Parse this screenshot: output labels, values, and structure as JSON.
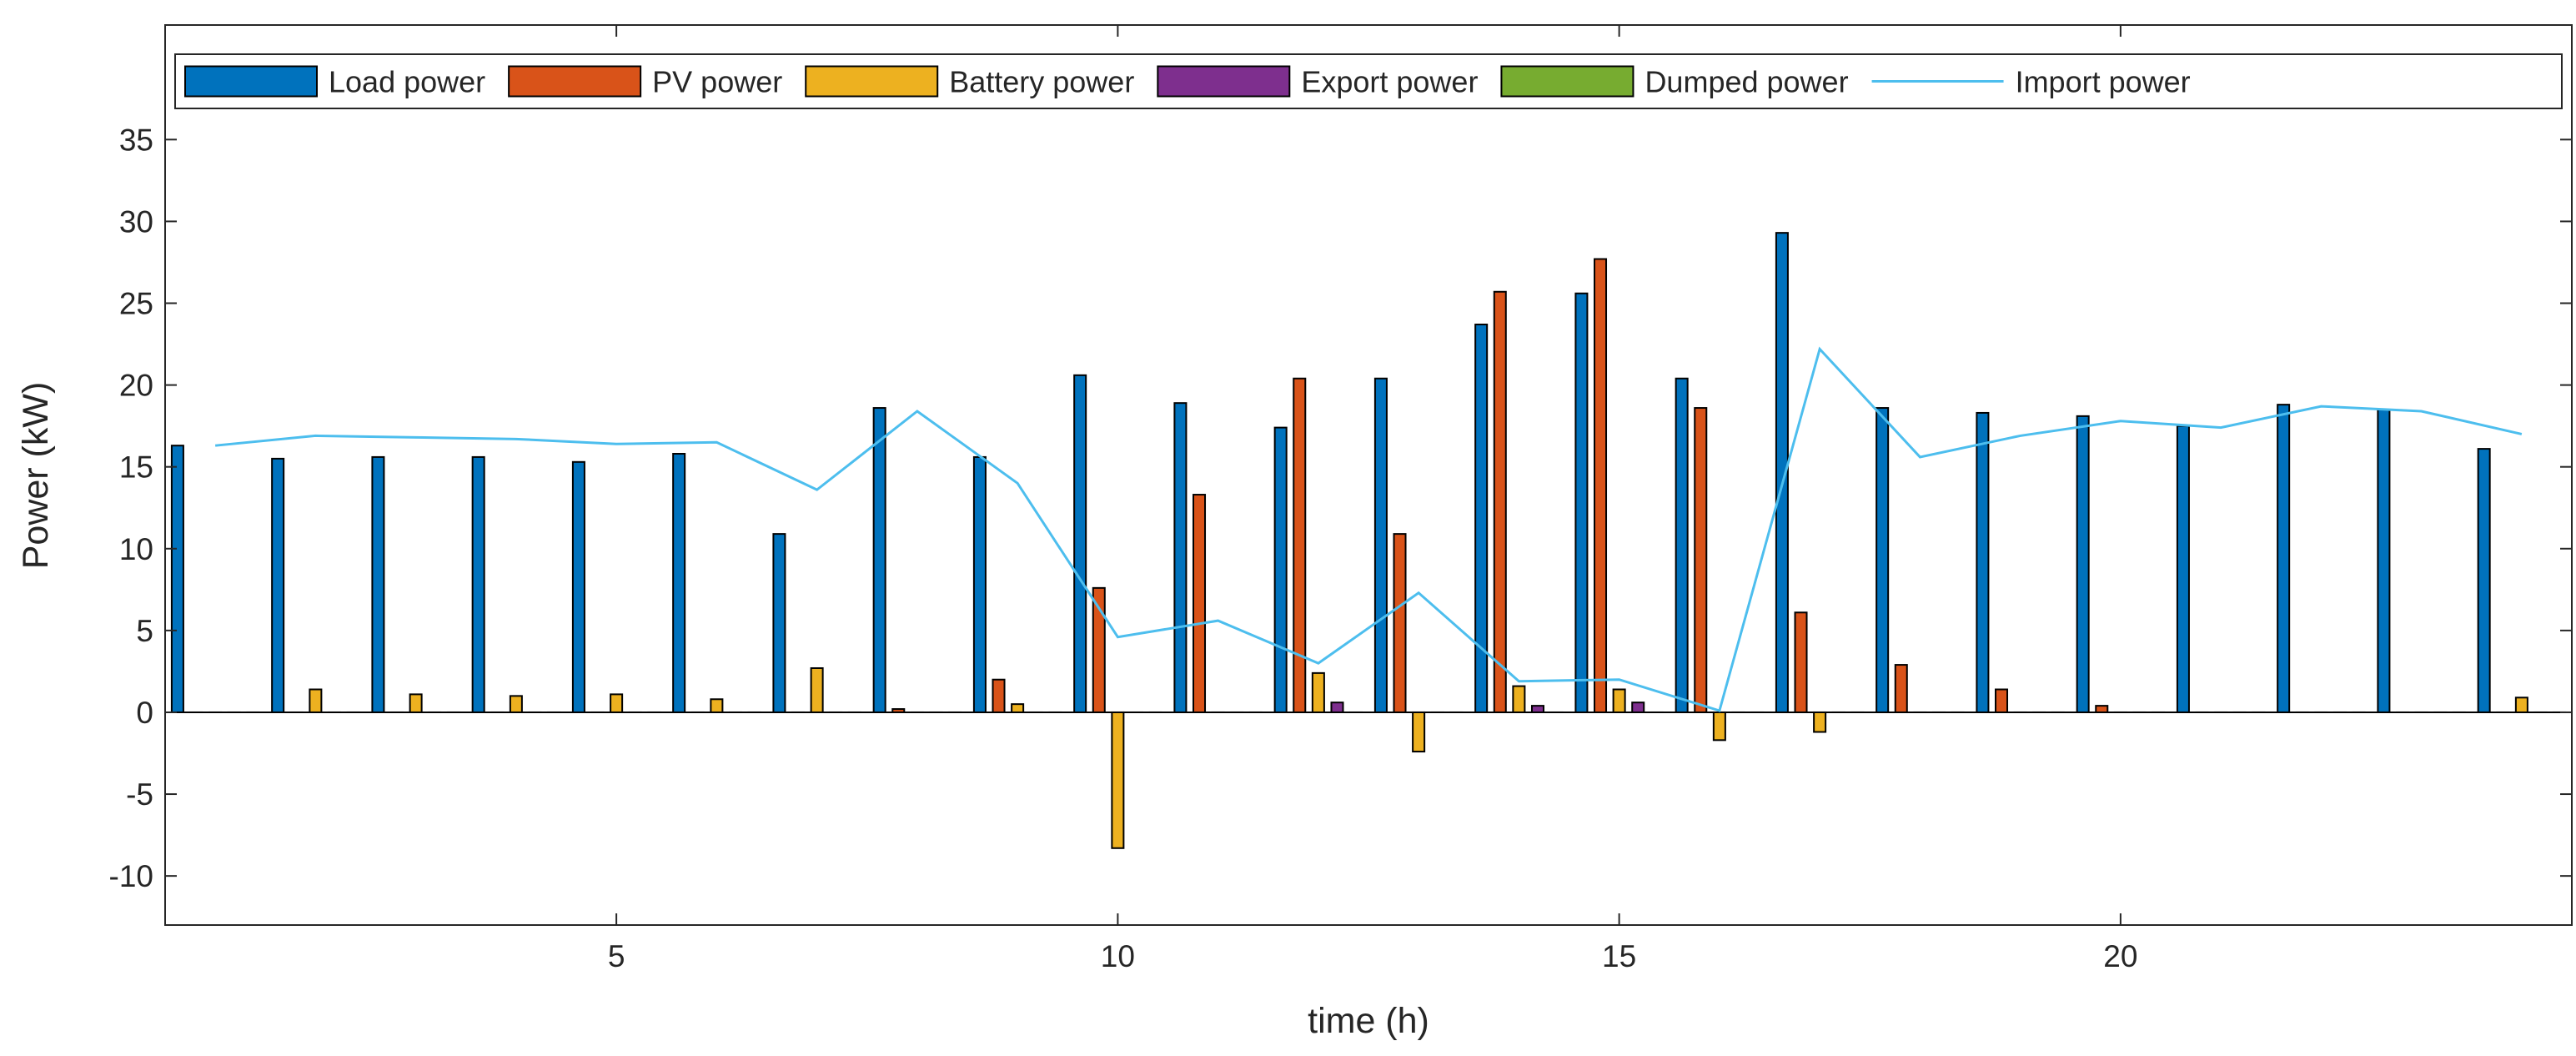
{
  "chart_data": {
    "type": "bar",
    "title": "",
    "xlabel": "time (h)",
    "ylabel": "Power (kW)",
    "xlim": [
      0.5,
      24.5
    ],
    "ylim": [
      -13,
      42
    ],
    "grid": false,
    "legend_position": "top",
    "x": [
      1,
      2,
      3,
      4,
      5,
      6,
      7,
      8,
      9,
      10,
      11,
      12,
      13,
      14,
      15,
      16,
      17,
      18,
      19,
      20,
      21,
      22,
      23,
      24
    ],
    "x_ticks": [
      5,
      10,
      15,
      20
    ],
    "x_tick_labels": [
      "5",
      "10",
      "15",
      "20"
    ],
    "y_ticks": [
      -10,
      -5,
      0,
      5,
      10,
      15,
      20,
      25,
      30,
      35
    ],
    "y_tick_labels": [
      "-10",
      "-5",
      "0",
      "5",
      "10",
      "15",
      "20",
      "25",
      "30",
      "35"
    ],
    "series": [
      {
        "name": "Load power",
        "kind": "bar",
        "color": "#0072BD",
        "values": [
          16.3,
          15.5,
          15.6,
          15.6,
          15.3,
          15.8,
          10.9,
          18.6,
          15.6,
          20.6,
          18.9,
          17.4,
          20.4,
          23.7,
          25.6,
          20.4,
          29.3,
          18.6,
          18.3,
          18.1,
          17.5,
          18.8,
          18.5,
          16.1
        ]
      },
      {
        "name": "PV power",
        "kind": "bar",
        "color": "#D95319",
        "values": [
          0,
          0,
          0,
          0,
          0,
          0,
          0,
          0.2,
          2.0,
          7.6,
          13.3,
          20.4,
          10.9,
          25.7,
          27.7,
          18.6,
          6.1,
          2.9,
          1.4,
          0.4,
          0,
          0,
          0,
          0
        ]
      },
      {
        "name": "Battery power",
        "kind": "bar",
        "color": "#EDB120",
        "values": [
          0,
          1.4,
          1.1,
          1.0,
          1.1,
          0.8,
          2.7,
          0,
          0.5,
          -8.3,
          0,
          2.4,
          -2.4,
          1.6,
          1.4,
          -1.7,
          -1.2,
          0,
          0,
          0,
          0,
          0,
          0,
          0.9
        ]
      },
      {
        "name": "Export power",
        "kind": "bar",
        "color": "#7E2F8E",
        "values": [
          0,
          0,
          0,
          0,
          0,
          0,
          0,
          0,
          0,
          0,
          0,
          0.6,
          0,
          0.4,
          0.6,
          0,
          0,
          0,
          0,
          0,
          0,
          0,
          0,
          0
        ]
      },
      {
        "name": "Dumped power",
        "kind": "bar",
        "color": "#77AC30",
        "values": [
          0,
          0,
          0,
          0,
          0,
          0,
          0,
          0,
          0,
          0,
          0,
          0,
          0,
          0,
          0,
          0,
          0,
          0,
          0,
          0,
          0,
          0,
          0,
          0
        ]
      },
      {
        "name": "Import power",
        "kind": "line",
        "color": "#4DBEEE",
        "values": [
          16.3,
          16.9,
          16.8,
          16.7,
          16.4,
          16.5,
          13.6,
          18.4,
          14.0,
          4.6,
          5.6,
          3.0,
          7.3,
          1.9,
          2.0,
          0.1,
          22.2,
          15.6,
          16.9,
          17.8,
          17.4,
          18.7,
          18.4,
          17.0
        ]
      }
    ]
  }
}
